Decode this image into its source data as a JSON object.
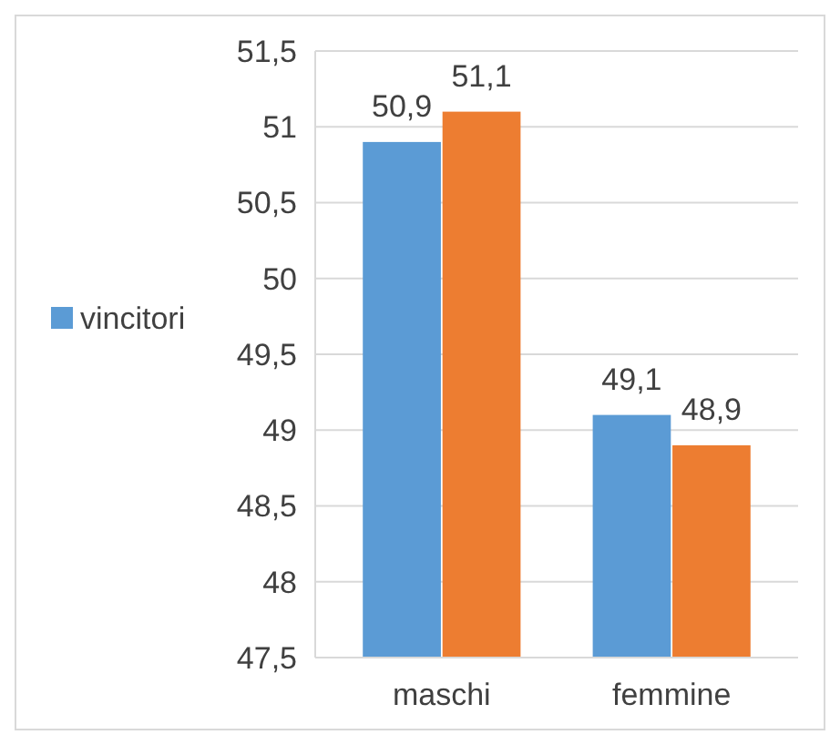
{
  "chart_data": {
    "type": "bar",
    "categories": [
      "maschi",
      "femmine"
    ],
    "series": [
      {
        "name": "vincitori",
        "color": "#5b9bd5",
        "values": [
          50.9,
          49.1
        ],
        "value_labels": [
          "50,9",
          "49,1"
        ]
      },
      {
        "color": "#ed7d31",
        "values": [
          51.1,
          48.9
        ],
        "value_labels": [
          "51,1",
          "48,9"
        ]
      }
    ],
    "ylim": [
      47.5,
      51.5
    ],
    "yticks": [
      {
        "value": 47.5,
        "label": "47,5"
      },
      48,
      {
        "value": 48.5,
        "label": "48,5"
      },
      49,
      {
        "value": 49.5,
        "label": "49,5"
      },
      50,
      {
        "value": 50.5,
        "label": "50,5"
      },
      51,
      {
        "value": 51.5,
        "label": "51,5"
      }
    ],
    "grid": "y",
    "legend": "left"
  }
}
